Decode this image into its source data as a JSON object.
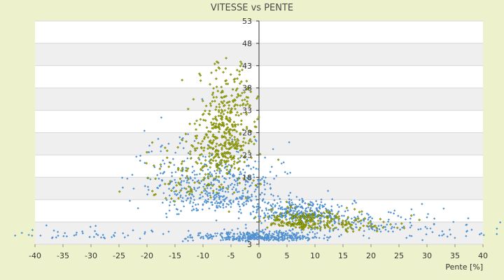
{
  "chart_data": {
    "type": "scatter",
    "title": "VITESSE vs PENTE",
    "xlabel": "Pente [%]",
    "ylabel": "",
    "xlim": [
      -40,
      40
    ],
    "ylim": [
      3,
      53
    ],
    "x_ticks": [
      -40,
      -35,
      -30,
      -25,
      -20,
      -15,
      -10,
      -5,
      0,
      5,
      10,
      15,
      20,
      25,
      30,
      35,
      40
    ],
    "y_ticks": [
      3,
      8,
      13,
      18,
      23,
      28,
      33,
      38,
      43,
      48,
      53
    ],
    "y_tick_labels": [
      "3",
      "",
      "",
      "18",
      "23",
      "28",
      "33",
      "38",
      "43",
      "48",
      "53"
    ],
    "grid": true,
    "band_colors": [
      "#ffffff",
      "#efefef"
    ],
    "series": [
      {
        "color": "#4f90d0",
        "marker": "diamond",
        "clusters": [
          {
            "x_mean": 0,
            "x_sd": 6,
            "y_mean": 4.5,
            "y_sd": 0.8,
            "n": 380
          },
          {
            "x_mean": -6,
            "x_sd": 5,
            "y_mean": 14,
            "y_sd": 5,
            "n": 380
          },
          {
            "x_mean": -15,
            "x_sd": 4,
            "y_mean": 16,
            "y_sd": 6,
            "n": 110
          },
          {
            "x_mean": 7,
            "x_sd": 4,
            "y_mean": 9.5,
            "y_sd": 1.6,
            "n": 300
          },
          {
            "x_mean": 18,
            "x_sd": 8,
            "y_mean": 7,
            "y_sd": 2,
            "n": 140
          },
          {
            "x_mean": -30,
            "x_sd": 8,
            "y_mean": 5,
            "y_sd": 1.2,
            "n": 50
          },
          {
            "x_mean": 33,
            "x_sd": 5,
            "y_mean": 5,
            "y_sd": 1,
            "n": 30
          }
        ]
      },
      {
        "color": "#a8b400",
        "marker": "diamond",
        "clusters": [
          {
            "x_mean": -6,
            "x_sd": 2.5,
            "y_mean": 26,
            "y_sd": 8,
            "n": 420
          },
          {
            "x_mean": -11,
            "x_sd": 5,
            "y_mean": 17,
            "y_sd": 6,
            "n": 120
          },
          {
            "x_mean": 8,
            "x_sd": 4,
            "y_mean": 8,
            "y_sd": 1.5,
            "n": 190
          },
          {
            "x_mean": 16,
            "x_sd": 5,
            "y_mean": 7,
            "y_sd": 1.5,
            "n": 70
          }
        ]
      }
    ]
  }
}
